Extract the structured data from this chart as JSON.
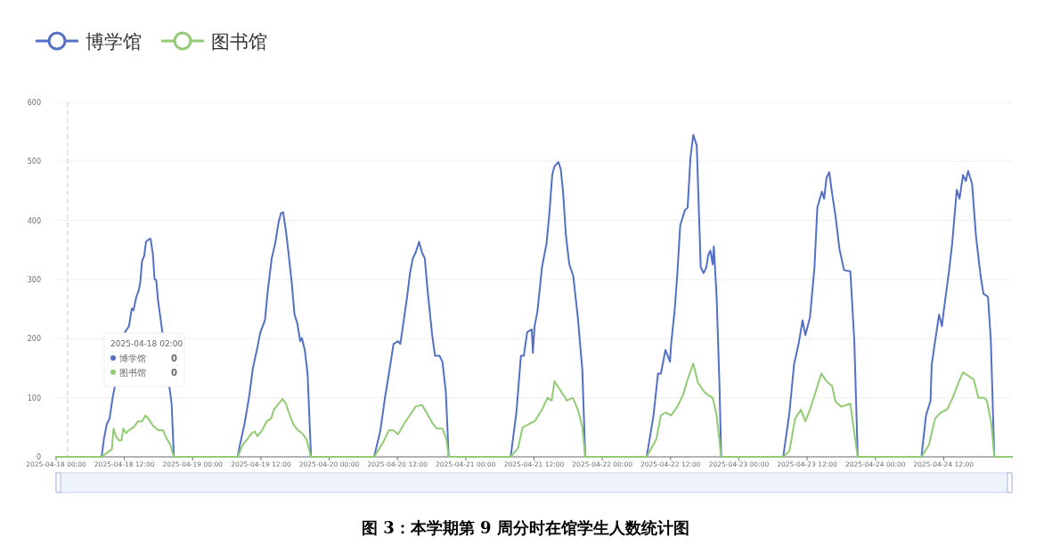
{
  "chart_data": {
    "type": "line",
    "xlim": [
      "2025-04-18T00:00",
      "2025-04-25T00:00"
    ],
    "ylim": [
      0,
      600
    ],
    "yticks": [
      0,
      100,
      200,
      300,
      400,
      500,
      600
    ],
    "xticks": [
      {
        "value": "2025-04-18T00:00",
        "label": "2025-04-18 00:00"
      },
      {
        "value": "2025-04-18T12:00",
        "label": "2025-04-18 12:00"
      },
      {
        "value": "2025-04-19T00:00",
        "label": "2025-04-19 00:00"
      },
      {
        "value": "2025-04-19T12:00",
        "label": "2025-04-19 12:00"
      },
      {
        "value": "2025-04-20T00:00",
        "label": "2025-04-20 00:00"
      },
      {
        "value": "2025-04-20T12:00",
        "label": "2025-04-20 12:00"
      },
      {
        "value": "2025-04-21T00:00",
        "label": "2025-04-21 00:00"
      },
      {
        "value": "2025-04-21T12:00",
        "label": "2025-04-21 12:00"
      },
      {
        "value": "2025-04-22T00:00",
        "label": "2025-04-22 00:00"
      },
      {
        "value": "2025-04-22T12:00",
        "label": "2025-04-22 12:00"
      },
      {
        "value": "2025-04-23T00:00",
        "label": "2025-04-23 00:00"
      },
      {
        "value": "2025-04-23T12:00",
        "label": "2025-04-23 12:00"
      },
      {
        "value": "2025-04-24T00:00",
        "label": "2025-04-24 00:00"
      },
      {
        "value": "2025-04-24T12:00",
        "label": "2025-04-24 12:00"
      }
    ],
    "grid": "y",
    "legend": "top left",
    "marker": "none",
    "line_style": "solid",
    "ref_lines": [
      {
        "axis": "x",
        "value": "2025-04-18T02:00",
        "color": "#cccccc",
        "line_style": "dashed"
      }
    ],
    "annotations": [
      "图 3：本学期第 9 周分时在馆学生人数统计图",
      "2025-04-18 02:00",
      "博学馆 0",
      "图书馆 0"
    ],
    "series": [
      {
        "name": "博学馆",
        "color": "#5470c6",
        "x": [
          "2025-04-18T00:00",
          "2025-04-18T08:00",
          "2025-04-18T08:24",
          "2025-04-18T08:54",
          "2025-04-18T09:24",
          "2025-04-18T09:54",
          "2025-04-18T12:06",
          "2025-04-18T12:48",
          "2025-04-18T13:18",
          "2025-04-18T13:36",
          "2025-04-18T14:06",
          "2025-04-18T14:30",
          "2025-04-18T14:48",
          "2025-04-18T15:06",
          "2025-04-18T15:30",
          "2025-04-18T15:48",
          "2025-04-18T16:24",
          "2025-04-18T16:36",
          "2025-04-18T17:00",
          "2025-04-18T17:18",
          "2025-04-18T17:36",
          "2025-04-18T17:54",
          "2025-04-18T18:24",
          "2025-04-18T20:18",
          "2025-04-18T20:42",
          "2025-04-19T07:54",
          "2025-04-19T08:18",
          "2025-04-19T09:06",
          "2025-04-19T09:54",
          "2025-04-19T10:36",
          "2025-04-19T11:24",
          "2025-04-19T11:54",
          "2025-04-19T12:42",
          "2025-04-19T13:12",
          "2025-04-19T13:54",
          "2025-04-19T14:30",
          "2025-04-19T15:06",
          "2025-04-19T15:30",
          "2025-04-19T15:54",
          "2025-04-19T16:24",
          "2025-04-19T16:54",
          "2025-04-19T17:24",
          "2025-04-19T17:54",
          "2025-04-19T18:24",
          "2025-04-19T18:54",
          "2025-04-19T19:12",
          "2025-04-19T19:42",
          "2025-04-19T20:12",
          "2025-04-19T20:48",
          "2025-04-20T07:54",
          "2025-04-20T09:00",
          "2025-04-20T09:48",
          "2025-04-20T10:30",
          "2025-04-20T11:18",
          "2025-04-20T12:06",
          "2025-04-20T12:30",
          "2025-04-20T13:06",
          "2025-04-20T13:42",
          "2025-04-20T14:12",
          "2025-04-20T14:42",
          "2025-04-20T15:12",
          "2025-04-20T15:48",
          "2025-04-20T16:18",
          "2025-04-20T16:48",
          "2025-04-20T17:18",
          "2025-04-20T18:06",
          "2025-04-20T18:36",
          "2025-04-20T19:24",
          "2025-04-20T19:54",
          "2025-04-20T20:30",
          "2025-04-20T21:00",
          "2025-04-21T07:54",
          "2025-04-21T08:54",
          "2025-04-21T09:42",
          "2025-04-21T10:12",
          "2025-04-21T10:48",
          "2025-04-21T11:36",
          "2025-04-21T11:48",
          "2025-04-21T12:06",
          "2025-04-21T12:36",
          "2025-04-21T13:24",
          "2025-04-21T14:12",
          "2025-04-21T14:42",
          "2025-04-21T15:12",
          "2025-04-21T15:36",
          "2025-04-21T16:18",
          "2025-04-21T16:42",
          "2025-04-21T17:06",
          "2025-04-21T17:36",
          "2025-04-21T18:12",
          "2025-04-21T18:54",
          "2025-04-21T19:42",
          "2025-04-21T20:30",
          "2025-04-21T21:00",
          "2025-04-22T07:48",
          "2025-04-22T09:00",
          "2025-04-22T09:48",
          "2025-04-22T10:18",
          "2025-04-22T11:06",
          "2025-04-22T11:54",
          "2025-04-22T12:06",
          "2025-04-22T12:42",
          "2025-04-22T13:12",
          "2025-04-22T13:42",
          "2025-04-22T14:30",
          "2025-04-22T15:00",
          "2025-04-22T15:30",
          "2025-04-22T16:00",
          "2025-04-22T16:36",
          "2025-04-22T17:06",
          "2025-04-22T17:18",
          "2025-04-22T17:48",
          "2025-04-22T18:18",
          "2025-04-22T18:36",
          "2025-04-22T19:00",
          "2025-04-22T19:24",
          "2025-04-22T19:36",
          "2025-04-22T20:06",
          "2025-04-22T20:36",
          "2025-04-22T20:54",
          "2025-04-23T07:48",
          "2025-04-23T08:54",
          "2025-04-23T09:42",
          "2025-04-23T10:30",
          "2025-04-23T11:12",
          "2025-04-23T11:42",
          "2025-04-23T12:30",
          "2025-04-23T13:18",
          "2025-04-23T13:48",
          "2025-04-23T14:36",
          "2025-04-23T15:00",
          "2025-04-23T15:24",
          "2025-04-23T15:54",
          "2025-04-23T16:18",
          "2025-04-23T17:00",
          "2025-04-23T17:42",
          "2025-04-23T18:30",
          "2025-04-23T19:36",
          "2025-04-23T20:18",
          "2025-04-23T20:54",
          "2025-04-24T08:06",
          "2025-04-24T08:54",
          "2025-04-24T09:42",
          "2025-04-24T09:54",
          "2025-04-24T10:30",
          "2025-04-24T11:12",
          "2025-04-24T11:42",
          "2025-04-24T12:00",
          "2025-04-24T12:54",
          "2025-04-24T13:30",
          "2025-04-24T14:18",
          "2025-04-24T14:48",
          "2025-04-24T15:24",
          "2025-04-24T15:54",
          "2025-04-24T16:18",
          "2025-04-24T17:00",
          "2025-04-24T17:42",
          "2025-04-24T18:30",
          "2025-04-24T19:00",
          "2025-04-24T19:48",
          "2025-04-24T20:18",
          "2025-04-24T20:54",
          "2025-04-25T00:00"
        ],
        "values": [
          0,
          0,
          30,
          55,
          65,
          98,
          211,
          221,
          251,
          248,
          271,
          281,
          296,
          331,
          341,
          364,
          369,
          369,
          344,
          301,
          299,
          266,
          231,
          90,
          0,
          0,
          20,
          55,
          100,
          151,
          186,
          211,
          231,
          281,
          336,
          361,
          397,
          412,
          414,
          382,
          341,
          296,
          241,
          226,
          196,
          201,
          181,
          141,
          0,
          0,
          45,
          100,
          141,
          191,
          196,
          191,
          231,
          271,
          311,
          336,
          346,
          364,
          346,
          336,
          281,
          206,
          171,
          171,
          161,
          110,
          0,
          0,
          75,
          171,
          171,
          211,
          216,
          176,
          221,
          246,
          321,
          361,
          412,
          477,
          492,
          499,
          487,
          449,
          376,
          326,
          306,
          236,
          146,
          0,
          0,
          70,
          141,
          141,
          181,
          161,
          191,
          246,
          311,
          392,
          417,
          422,
          507,
          545,
          527,
          382,
          321,
          311,
          321,
          341,
          349,
          326,
          356,
          271,
          120,
          0,
          0,
          75,
          156,
          191,
          231,
          206,
          236,
          321,
          422,
          449,
          437,
          472,
          482,
          452,
          407,
          351,
          316,
          314,
          196,
          0,
          0,
          70,
          95,
          156,
          196,
          241,
          221,
          246,
          311,
          361,
          452,
          437,
          477,
          467,
          484,
          462,
          372,
          306,
          276,
          271,
          196,
          0,
          0
        ]
      },
      {
        "name": "图书馆",
        "color": "#91cc75",
        "x": [
          "2025-04-18T00:00",
          "2025-04-18T08:00",
          "2025-04-18T09:24",
          "2025-04-18T09:48",
          "2025-04-18T10:06",
          "2025-04-18T10:30",
          "2025-04-18T11:00",
          "2025-04-18T11:30",
          "2025-04-18T11:48",
          "2025-04-18T12:18",
          "2025-04-18T12:48",
          "2025-04-18T13:36",
          "2025-04-18T14:24",
          "2025-04-18T15:06",
          "2025-04-18T15:42",
          "2025-04-18T16:12",
          "2025-04-18T17:00",
          "2025-04-18T18:00",
          "2025-04-18T18:48",
          "2025-04-18T19:18",
          "2025-04-18T20:06",
          "2025-04-18T20:42",
          "2025-04-19T07:54",
          "2025-04-19T08:48",
          "2025-04-19T09:36",
          "2025-04-19T10:24",
          "2025-04-19T10:54",
          "2025-04-19T11:24",
          "2025-04-19T12:12",
          "2025-04-19T13:00",
          "2025-04-19T13:48",
          "2025-04-19T14:18",
          "2025-04-19T15:06",
          "2025-04-19T15:48",
          "2025-04-19T16:24",
          "2025-04-19T16:54",
          "2025-04-19T17:42",
          "2025-04-19T18:30",
          "2025-04-19T19:12",
          "2025-04-19T20:00",
          "2025-04-19T20:48",
          "2025-04-20T07:54",
          "2025-04-20T09:30",
          "2025-04-20T10:30",
          "2025-04-20T11:18",
          "2025-04-20T12:06",
          "2025-04-20T13:06",
          "2025-04-20T14:30",
          "2025-04-20T15:12",
          "2025-04-20T16:18",
          "2025-04-20T17:06",
          "2025-04-20T18:06",
          "2025-04-20T18:54",
          "2025-04-20T19:54",
          "2025-04-20T20:36",
          "2025-04-20T21:00",
          "2025-04-21T07:54",
          "2025-04-21T09:12",
          "2025-04-21T10:00",
          "2025-04-21T11:00",
          "2025-04-21T12:06",
          "2025-04-21T13:24",
          "2025-04-21T14:24",
          "2025-04-21T15:06",
          "2025-04-21T15:36",
          "2025-04-21T16:48",
          "2025-04-21T17:48",
          "2025-04-21T18:48",
          "2025-04-21T19:42",
          "2025-04-21T20:30",
          "2025-04-21T21:00",
          "2025-04-22T07:48",
          "2025-04-22T09:30",
          "2025-04-22T10:18",
          "2025-04-22T11:06",
          "2025-04-22T12:06",
          "2025-04-22T13:12",
          "2025-04-22T14:12",
          "2025-04-22T15:00",
          "2025-04-22T16:00",
          "2025-04-22T16:48",
          "2025-04-22T17:54",
          "2025-04-22T18:30",
          "2025-04-22T19:24",
          "2025-04-22T20:06",
          "2025-04-22T20:54",
          "2025-04-23T07:48",
          "2025-04-23T08:54",
          "2025-04-23T09:54",
          "2025-04-23T10:54",
          "2025-04-23T11:42",
          "2025-04-23T12:30",
          "2025-04-23T13:30",
          "2025-04-23T14:30",
          "2025-04-23T15:24",
          "2025-04-23T16:24",
          "2025-04-23T17:00",
          "2025-04-23T18:00",
          "2025-04-23T19:36",
          "2025-04-23T20:18",
          "2025-04-23T20:54",
          "2025-04-24T08:06",
          "2025-04-24T09:24",
          "2025-04-24T10:30",
          "2025-04-24T11:30",
          "2025-04-24T12:36",
          "2025-04-24T13:36",
          "2025-04-24T14:42",
          "2025-04-24T15:24",
          "2025-04-24T16:30",
          "2025-04-24T17:18",
          "2025-04-24T18:06",
          "2025-04-24T19:06",
          "2025-04-24T19:36",
          "2025-04-24T20:24",
          "2025-04-24T20:54",
          "2025-04-25T00:00"
        ],
        "values": [
          0,
          0,
          10,
          13,
          48,
          35,
          28,
          28,
          48,
          40,
          45,
          50,
          60,
          60,
          70,
          65,
          53,
          45,
          45,
          33,
          20,
          0,
          0,
          20,
          30,
          40,
          43,
          35,
          45,
          60,
          65,
          80,
          90,
          98,
          90,
          75,
          55,
          45,
          40,
          30,
          0,
          0,
          25,
          45,
          45,
          38,
          55,
          75,
          85,
          88,
          75,
          58,
          48,
          48,
          30,
          0,
          0,
          15,
          50,
          55,
          60,
          80,
          100,
          95,
          128,
          110,
          95,
          100,
          80,
          50,
          0,
          0,
          30,
          70,
          75,
          70,
          85,
          105,
          131,
          158,
          126,
          110,
          105,
          100,
          70,
          0,
          0,
          10,
          65,
          80,
          60,
          80,
          110,
          141,
          128,
          120,
          93,
          85,
          90,
          40,
          0,
          0,
          20,
          65,
          75,
          80,
          100,
          128,
          143,
          136,
          131,
          100,
          100,
          95,
          55,
          0,
          0
        ]
      }
    ]
  }
}
